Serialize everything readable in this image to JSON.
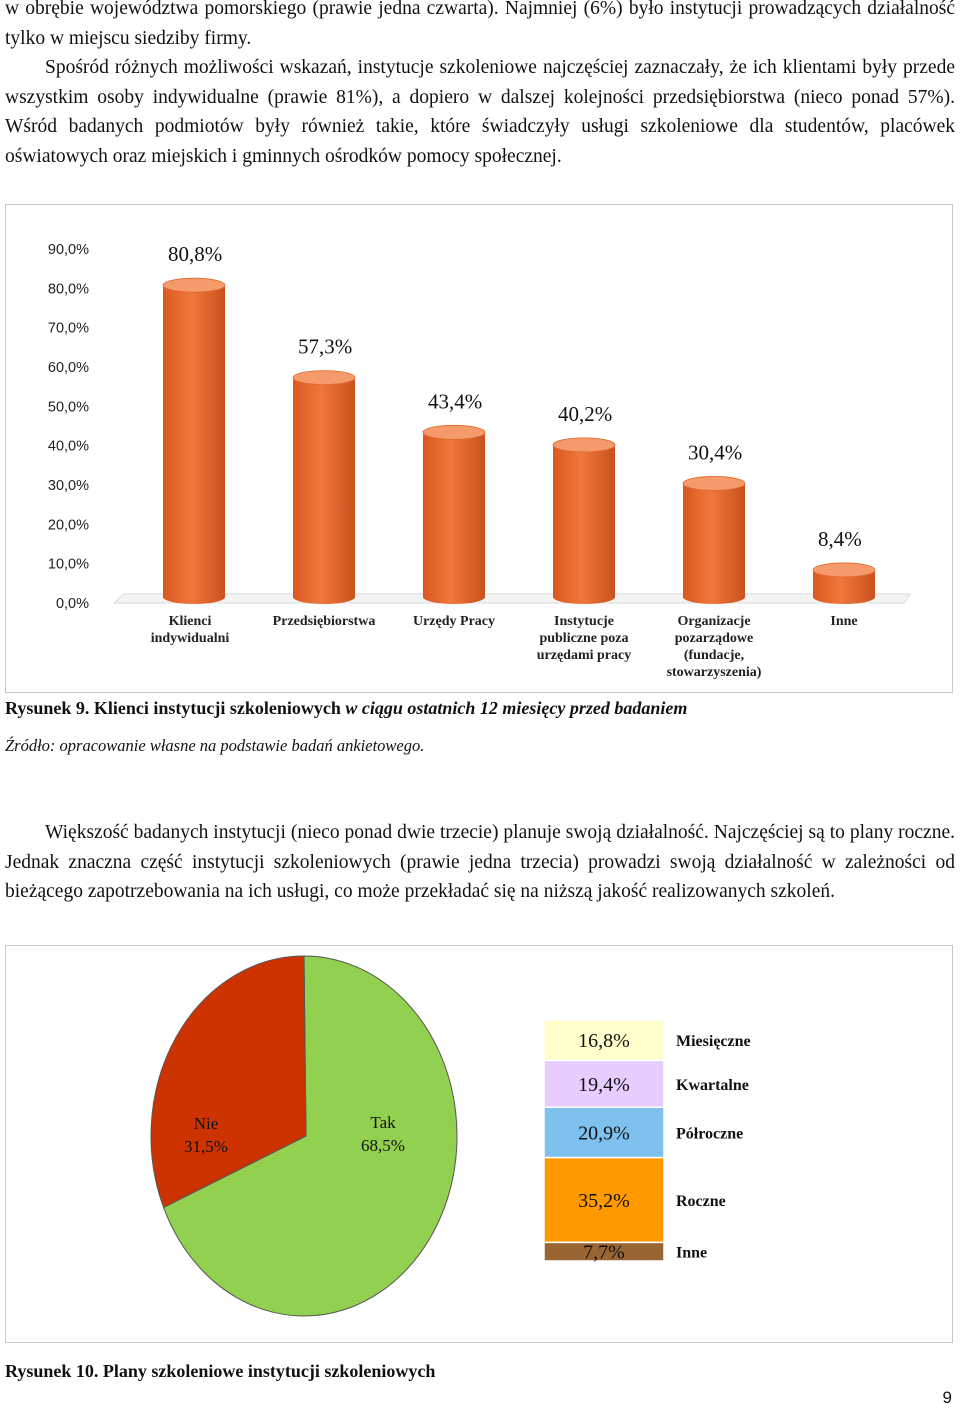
{
  "para_top": [
    "w obrębie województwa pomorskiego (prawie jedna czwarta). Najmniej (6%) było instytucji prowadzących działalność tylko w miejscu siedziby firmy.",
    "Spośród różnych możliwości wskazań, instytucje szkoleniowe najczęściej zaznaczały, że ich klientami były przede wszystkim osoby indywidualne (prawie 81%), a dopiero w dalszej kolejności przedsiębiorstwa (nieco ponad 57%). Wśród badanych podmiotów były również takie, które świadczyły usługi szkoleniowe dla studentów, placówek oświatowych oraz miejskich i gminnych ośrodków pomocy społecznej."
  ],
  "figure9": {
    "caption_bold": "Rysunek 9. Klienci instytucji szkoleniowych",
    "caption_italic": "w ciągu ostatnich 12 miesięcy przed badaniem",
    "source": "Źródło: opracowanie własne na podstawie badań ankietowego."
  },
  "para_mid": "Większość badanych instytucji (nieco ponad dwie trzecie) planuje swoją działalność. Najczęściej są to plany roczne. Jednak znaczna część instytucji szkoleniowych (prawie jedna trzecia) prowadzi swoją działalność w zależności od bieżącego zapotrzebowania na ich usługi, co może przekładać się na niższą jakość realizowanych szkoleń.",
  "figure10": {
    "caption": "Rysunek 10. Plany szkoleniowe instytucji szkoleniowych"
  },
  "page_number": "9",
  "chart_data": [
    {
      "type": "bar",
      "title": "",
      "categories": [
        [
          "Klienci",
          "indywidualni"
        ],
        [
          "Przedsiębiorstwa"
        ],
        [
          "Urzędy Pracy"
        ],
        [
          "Instytucje",
          "publiczne poza",
          "urzędami pracy"
        ],
        [
          "Organizacje",
          "pozarządowe",
          "(fundacje,",
          "stowarzyszenia)"
        ],
        [
          "Inne"
        ]
      ],
      "values": [
        80.8,
        57.3,
        43.4,
        40.2,
        30.4,
        8.4
      ],
      "value_labels": [
        "80,8%",
        "57,3%",
        "43,4%",
        "40,2%",
        "30,4%",
        "8,4%"
      ],
      "ylim": [
        0,
        90
      ],
      "yticks": [
        "0,0%",
        "10,0%",
        "20,0%",
        "30,0%",
        "40,0%",
        "50,0%",
        "60,0%",
        "70,0%",
        "80,0%",
        "90,0%"
      ],
      "xlabel": "",
      "ylabel": "",
      "grid": false,
      "bar_style": "3d-cylinder",
      "color": "#f0783c"
    },
    {
      "type": "pie",
      "title": "",
      "slices": [
        {
          "label": "Nie",
          "value": 31.5,
          "value_label": "31,5%",
          "color": "#cc3300"
        },
        {
          "label": "Tak",
          "value": 68.5,
          "value_label": "68,5%",
          "color": "#92d050"
        }
      ],
      "breakdown_of": "Tak",
      "breakdown": [
        {
          "label": "Miesięczne",
          "value": 16.8,
          "value_label": "16,8%",
          "color": "#ffffcc"
        },
        {
          "label": "Kwartalne",
          "value": 19.4,
          "value_label": "19,4%",
          "color": "#e6ccff"
        },
        {
          "label": "Półroczne",
          "value": 20.9,
          "value_label": "20,9%",
          "color": "#7ec0ee"
        },
        {
          "label": "Roczne",
          "value": 35.2,
          "value_label": "35,2%",
          "color": "#ff9900"
        },
        {
          "label": "Inne",
          "value": 7.7,
          "value_label": "7,7%",
          "color": "#996633"
        }
      ],
      "legend": "right"
    }
  ]
}
